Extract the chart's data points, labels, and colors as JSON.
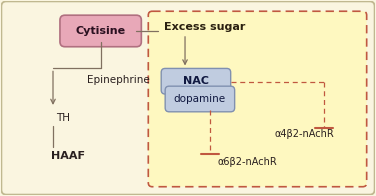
{
  "bg_outer": "#faf5e0",
  "bg_inner": "#fef8c0",
  "border_outer": "#c0b890",
  "border_inner_dashed": "#c05840",
  "cytisine_box_color": "#e8a8b8",
  "cytisine_border": "#b07080",
  "cytisine_text": "Cytisine",
  "nac_box_color": "#c0cce0",
  "nac_border": "#8090b0",
  "nac_text": "NAC",
  "dopamine_text": "dopamine",
  "excess_sugar_text": "Excess sugar",
  "epinephrine_text": "Epinephrine",
  "th_text": "TH",
  "haaf_text": "HAAF",
  "alpha4_text": "α4β2-nAchR",
  "alpha6_text": "α6β2-nAchR",
  "line_color": "#807060",
  "dashed_color": "#c05840",
  "figsize": [
    3.76,
    1.96
  ],
  "dpi": 100
}
